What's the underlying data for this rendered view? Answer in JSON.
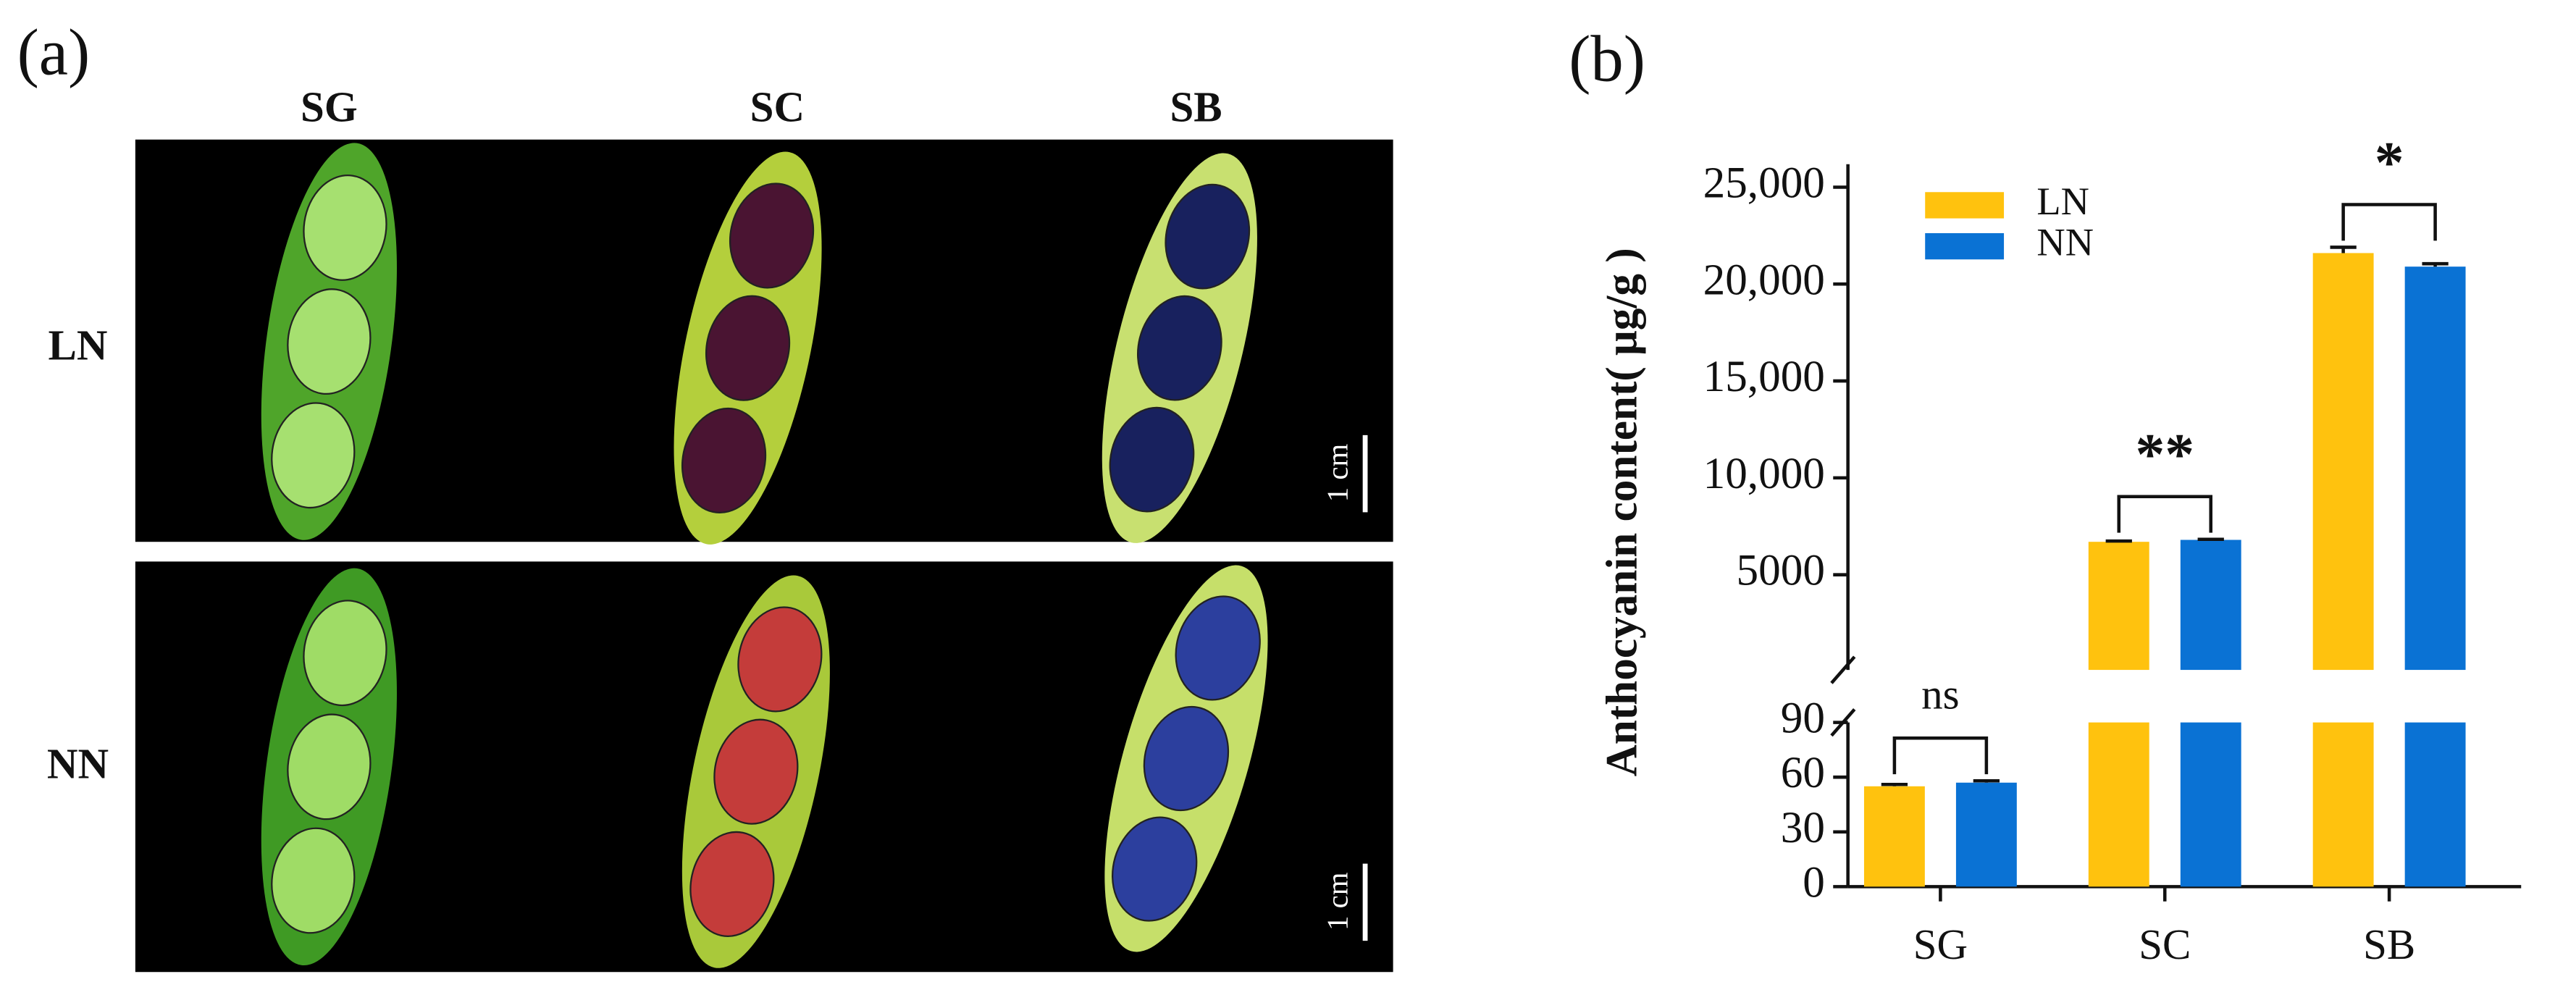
{
  "panel_a": {
    "label": "(a)",
    "columns": [
      "SG",
      "SC",
      "SB"
    ],
    "rows": [
      "LN",
      "NN"
    ],
    "scale_labels": [
      "1 cm",
      "1 cm"
    ]
  },
  "chart_data": {
    "type": "bar",
    "panel_label": "(b)",
    "y_label": "Anthocyanin content( μg/g )",
    "categories": [
      "SG",
      "SC",
      "SB"
    ],
    "series": [
      {
        "name": "LN",
        "color": "#FFC20E",
        "values": [
          55,
          6700,
          21600
        ],
        "errors": [
          1,
          40,
          300
        ]
      },
      {
        "name": "NN",
        "color": "#0A72D4",
        "values": [
          57,
          6800,
          20900
        ],
        "errors": [
          1,
          30,
          150
        ]
      }
    ],
    "axis_segments": [
      {
        "ylim": [
          0,
          90
        ],
        "yticks": [
          0,
          30,
          60,
          90
        ]
      },
      {
        "ylim": [
          90,
          25000
        ],
        "yticks": [
          5000,
          {
            "value": 10000,
            "label": "10,000"
          },
          {
            "value": 15000,
            "label": "15,000"
          },
          {
            "value": 20000,
            "label": "20,000"
          },
          {
            "value": 25000,
            "label": "25,000"
          }
        ]
      }
    ],
    "annotations": [
      "ns",
      "**",
      "*"
    ]
  }
}
